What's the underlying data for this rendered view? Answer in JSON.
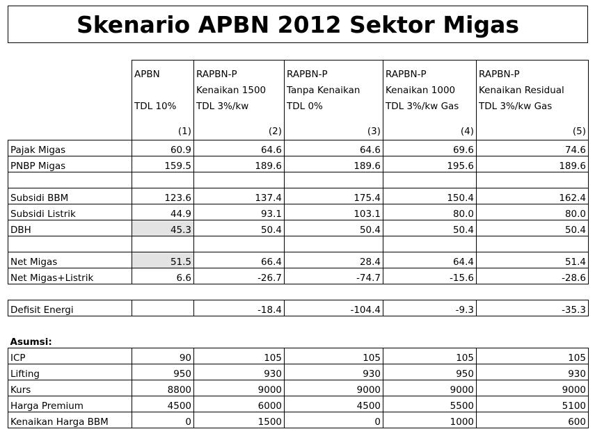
{
  "title": "Skenario APBN 2012 Sektor Migas",
  "columns": [
    {
      "lines": [
        "APBN",
        "",
        "TDL 10%"
      ],
      "num": "(1)"
    },
    {
      "lines": [
        "RAPBN-P",
        "Kenaikan 1500",
        "TDL 3%/kw"
      ],
      "num": "(2)"
    },
    {
      "lines": [
        "RAPBN-P",
        "Tanpa Kenaikan",
        "TDL 0%"
      ],
      "num": "(3)"
    },
    {
      "lines": [
        "RAPBN-P",
        "Kenaikan 1000",
        "TDL 3%/kw Gas"
      ],
      "num": "(4)"
    },
    {
      "lines": [
        "RAPBN-P",
        "Kenaikan Residual",
        "TDL 3%/kw Gas"
      ],
      "num": "(5)"
    }
  ],
  "rows": {
    "pajak": {
      "label": "Pajak Migas",
      "values": [
        "60.9",
        "64.6",
        "64.6",
        "69.6",
        "74.6"
      ]
    },
    "pnbp": {
      "label": "PNBP Migas",
      "values": [
        "159.5",
        "189.6",
        "189.6",
        "195.6",
        "189.6"
      ]
    },
    "subsidi_bbm": {
      "label": "Subsidi BBM",
      "values": [
        "123.6",
        "137.4",
        "175.4",
        "150.4",
        "162.4"
      ]
    },
    "subsidi_listrik": {
      "label": "Subsidi Listrik",
      "values": [
        "44.9",
        "93.1",
        "103.1",
        "80.0",
        "80.0"
      ]
    },
    "dbh": {
      "label": "DBH",
      "values": [
        "45.3",
        "50.4",
        "50.4",
        "50.4",
        "50.4"
      ]
    },
    "net_migas": {
      "label": "Net Migas",
      "values": [
        "51.5",
        "66.4",
        "28.4",
        "64.4",
        "51.4"
      ]
    },
    "net_migas_listrik": {
      "label": "Net Migas+Listrik",
      "values": [
        "6.6",
        "-26.7",
        "-74.7",
        "-15.6",
        "-28.6"
      ]
    },
    "defisit": {
      "label": "Defisit Energi",
      "values": [
        "",
        "-18.4",
        "-104.4",
        "-9.3",
        "-35.3"
      ]
    }
  },
  "asumsi_label": "Asumsi:",
  "asumsi": {
    "icp": {
      "label": "ICP",
      "values": [
        "90",
        "105",
        "105",
        "105",
        "105"
      ]
    },
    "lifting": {
      "label": "Lifting",
      "values": [
        "950",
        "930",
        "930",
        "950",
        "930"
      ]
    },
    "kurs": {
      "label": "Kurs",
      "values": [
        "8800",
        "9000",
        "9000",
        "9000",
        "9000"
      ]
    },
    "harga_premium": {
      "label": "Harga Premium",
      "values": [
        "4500",
        "6000",
        "4500",
        "5500",
        "5100"
      ]
    },
    "kenaikan_bbm": {
      "label": "Kenaikan Harga BBM",
      "values": [
        "0",
        "1500",
        "0",
        "1000",
        "600"
      ]
    }
  },
  "colors": {
    "shade": "#e3e3e3",
    "border": "#000000"
  }
}
